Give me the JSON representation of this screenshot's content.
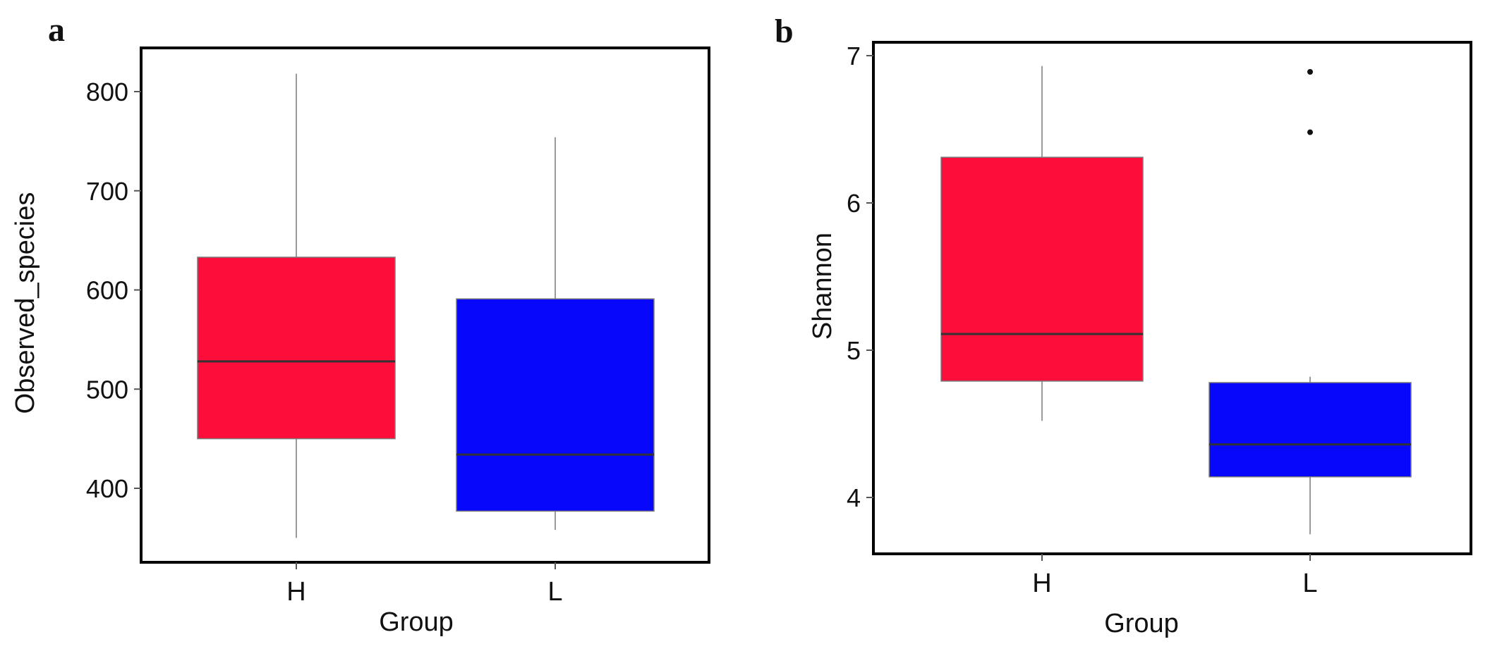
{
  "colors": {
    "H": "#fd0d3a",
    "L": "#0707fc",
    "frame": "#000000",
    "whisker": "#9a9a9a",
    "median": "#333333"
  },
  "chart_data": [
    {
      "panel": "a",
      "type": "boxplot",
      "xlabel": "Group",
      "ylabel": "Observed_species",
      "categories": [
        "H",
        "L"
      ],
      "ylim": [
        300,
        850
      ],
      "yticks": [
        400,
        500,
        600,
        700,
        800
      ],
      "grid": false,
      "legend": "none",
      "boxes": [
        {
          "group": "H",
          "min": 350,
          "q1": 450,
          "median": 528,
          "q3": 633,
          "max": 818,
          "outliers": []
        },
        {
          "group": "L",
          "min": 358,
          "q1": 377,
          "median": 434,
          "q3": 591,
          "max": 754,
          "outliers": []
        }
      ]
    },
    {
      "panel": "b",
      "type": "boxplot",
      "xlabel": "Group",
      "ylabel": "Shannon",
      "categories": [
        "H",
        "L"
      ],
      "ylim": [
        3.6,
        7.1
      ],
      "yticks": [
        4,
        5,
        6,
        7
      ],
      "grid": false,
      "legend": "none",
      "boxes": [
        {
          "group": "H",
          "min": 4.52,
          "q1": 4.79,
          "median": 5.11,
          "q3": 6.31,
          "max": 6.93,
          "outliers": []
        },
        {
          "group": "L",
          "min": 3.75,
          "q1": 4.14,
          "median": 4.36,
          "q3": 4.78,
          "max": 4.82,
          "outliers": [
            6.48,
            6.89
          ]
        }
      ]
    }
  ]
}
